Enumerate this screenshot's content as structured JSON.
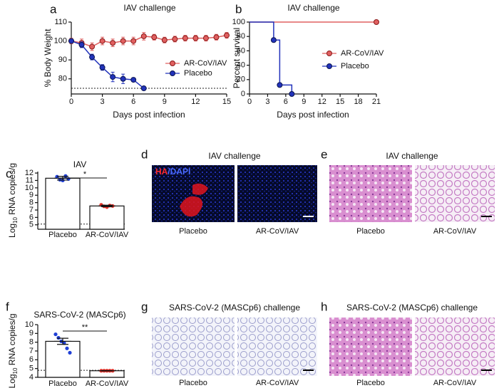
{
  "chart_data": [
    {
      "panel": "a",
      "type": "line",
      "title": "IAV challenge",
      "xlabel": "Days post infection",
      "ylabel": "% Body Weight",
      "x": [
        0,
        1,
        2,
        3,
        4,
        5,
        6,
        7,
        8,
        9,
        10,
        11,
        12,
        13,
        14,
        15
      ],
      "xlim": [
        0,
        15
      ],
      "xticks": [
        0,
        3,
        6,
        9,
        12,
        15
      ],
      "ylim": [
        72,
        110
      ],
      "yticks": [
        80,
        90,
        100,
        110
      ],
      "hline": 75,
      "series": [
        {
          "name": "AR-CoV/IAV",
          "color": "#e06060",
          "values": [
            100,
            99,
            97,
            100,
            99,
            100,
            100,
            102.5,
            102,
            100.5,
            101,
            101.5,
            101.5,
            101.5,
            102,
            103
          ],
          "errors": [
            1.5,
            2,
            2,
            2,
            2,
            2,
            2,
            2,
            1.5,
            1.5,
            1.5,
            1.5,
            1.5,
            1.5,
            1.5,
            1.5
          ]
        },
        {
          "name": "Placebo",
          "color": "#2233bb",
          "values": [
            100,
            98,
            91.5,
            86,
            81,
            80,
            79.5,
            75,
            null,
            null,
            null,
            null,
            null,
            null,
            null,
            null
          ],
          "errors": [
            1,
            1.5,
            1.5,
            1.5,
            2.5,
            2.5,
            1,
            0,
            null,
            null,
            null,
            null,
            null,
            null,
            null,
            null
          ]
        }
      ]
    },
    {
      "panel": "b",
      "type": "step",
      "title": "IAV challenge",
      "xlabel": "Days post infection",
      "ylabel": "Percent survival",
      "xlim": [
        0,
        21
      ],
      "xticks": [
        0,
        3,
        6,
        9,
        12,
        15,
        18,
        21
      ],
      "ylim": [
        0,
        100
      ],
      "yticks": [
        0,
        20,
        40,
        60,
        80,
        100
      ],
      "series": [
        {
          "name": "AR-CoV/IAV",
          "color": "#e06060",
          "x": [
            0,
            21
          ],
          "values": [
            100,
            100
          ]
        },
        {
          "name": "Placebo",
          "color": "#2233bb",
          "x": [
            0,
            4,
            5,
            7
          ],
          "values": [
            100,
            75,
            12.5,
            0
          ]
        }
      ]
    },
    {
      "panel": "c",
      "type": "bar",
      "title": "IAV",
      "ylabel_base": "Log",
      "ylabel_sub": "10",
      "ylabel_rest": " RNA copies/g",
      "categories": [
        "Placebo",
        "AR-CoV/IAV"
      ],
      "values": [
        11.3,
        7.55
      ],
      "errors": [
        0.25,
        0.1
      ],
      "points": [
        [
          11.5,
          11.1,
          11.0,
          11.6,
          11.2
        ],
        [
          7.7,
          7.5,
          7.4,
          7.6,
          7.55
        ]
      ],
      "point_colors": [
        "#1f3fd6",
        "#e8332a"
      ],
      "ylim": [
        4.4,
        12.2
      ],
      "yticks": [
        5,
        6,
        7,
        8,
        9,
        10,
        11,
        12
      ],
      "hline": 5.1,
      "annotation": "*"
    },
    {
      "panel": "f",
      "type": "bar",
      "title": "SARS-CoV-2 (MASCp6)",
      "ylabel_base": "Log",
      "ylabel_sub": "10",
      "ylabel_rest": " RNA copies/g",
      "categories": [
        "Placebo",
        "AR-CoV/IAV"
      ],
      "values": [
        8.1,
        4.75
      ],
      "errors": [
        0.35,
        0.02
      ],
      "points": [
        [
          8.9,
          8.5,
          8.1,
          7.9,
          7.3,
          6.8
        ],
        [
          4.75,
          4.75,
          4.75,
          4.75,
          4.75
        ]
      ],
      "point_colors": [
        "#1f3fd6",
        "#e8332a"
      ],
      "ylim": [
        4,
        10
      ],
      "yticks": [
        4,
        5,
        6,
        7,
        8,
        9,
        10
      ],
      "hline": 4.8,
      "annotation": "**"
    }
  ],
  "images": [
    {
      "panel": "d",
      "title": "IAV challenge",
      "stain_a": "HA",
      "stain_b": "/DAPI",
      "labels": [
        "Placebo",
        "AR-CoV/IAV"
      ]
    },
    {
      "panel": "e",
      "title": "IAV challenge",
      "labels": [
        "Placebo",
        "AR-CoV/IAV"
      ]
    },
    {
      "panel": "g",
      "title": "SARS-CoV-2 (MASCp6) challenge",
      "labels": [
        "Placebo",
        "AR-CoV/IAV"
      ]
    },
    {
      "panel": "h",
      "title": "SARS-CoV-2 (MASCp6) challenge",
      "labels": [
        "Placebo",
        "AR-CoV/IAV"
      ]
    }
  ]
}
